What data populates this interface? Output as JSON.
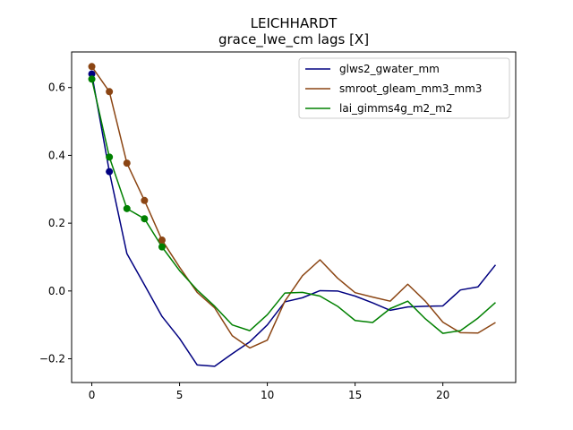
{
  "chart_data": {
    "type": "line",
    "title": "LEICHHARDT",
    "subtitle": "grace_lwe_cm lags [X]",
    "xlim": [
      -1.15,
      24.15
    ],
    "ylim": [
      -0.27,
      0.705
    ],
    "x_ticks": [
      0,
      5,
      10,
      15,
      20
    ],
    "y_ticks": [
      -0.2,
      0.0,
      0.2,
      0.4,
      0.6
    ],
    "x_tick_labels": [
      "0",
      "5",
      "10",
      "15",
      "20"
    ],
    "y_tick_labels": [
      "−0.2",
      "0.0",
      "0.2",
      "0.4",
      "0.6"
    ],
    "grid": false,
    "legend_position": "top-right",
    "x": [
      0,
      1,
      2,
      3,
      4,
      5,
      6,
      7,
      8,
      9,
      10,
      11,
      12,
      13,
      14,
      15,
      16,
      17,
      18,
      19,
      20,
      21,
      22,
      23
    ],
    "series": [
      {
        "name": "glws2_gwater_mm",
        "color": "#000080",
        "values": [
          0.64,
          0.352,
          0.11,
          0.018,
          -0.075,
          -0.14,
          -0.218,
          -0.222,
          -0.185,
          -0.15,
          -0.1,
          -0.032,
          -0.02,
          0.001,
          0.0,
          -0.015,
          -0.035,
          -0.057,
          -0.047,
          -0.045,
          -0.044,
          0.003,
          0.012,
          0.077
        ],
        "markers": [
          0,
          1
        ]
      },
      {
        "name": "smroot_gleam_mm3_mm3",
        "color": "#8B4513",
        "values": [
          0.662,
          0.588,
          0.377,
          0.267,
          0.15,
          0.07,
          -0.004,
          -0.05,
          -0.132,
          -0.168,
          -0.145,
          -0.03,
          0.045,
          0.092,
          0.038,
          -0.005,
          -0.018,
          -0.03,
          0.02,
          -0.03,
          -0.092,
          -0.123,
          -0.124,
          -0.093
        ],
        "markers": [
          0,
          1,
          2,
          3,
          4
        ]
      },
      {
        "name": "lai_gimms4g_m2_m2",
        "color": "#008000",
        "values": [
          0.625,
          0.395,
          0.243,
          0.213,
          0.13,
          0.06,
          0.003,
          -0.045,
          -0.1,
          -0.117,
          -0.07,
          -0.006,
          -0.004,
          -0.015,
          -0.045,
          -0.087,
          -0.093,
          -0.052,
          -0.03,
          -0.082,
          -0.125,
          -0.117,
          -0.08,
          -0.034
        ],
        "markers": [
          0,
          1,
          2,
          3,
          4
        ]
      }
    ]
  }
}
